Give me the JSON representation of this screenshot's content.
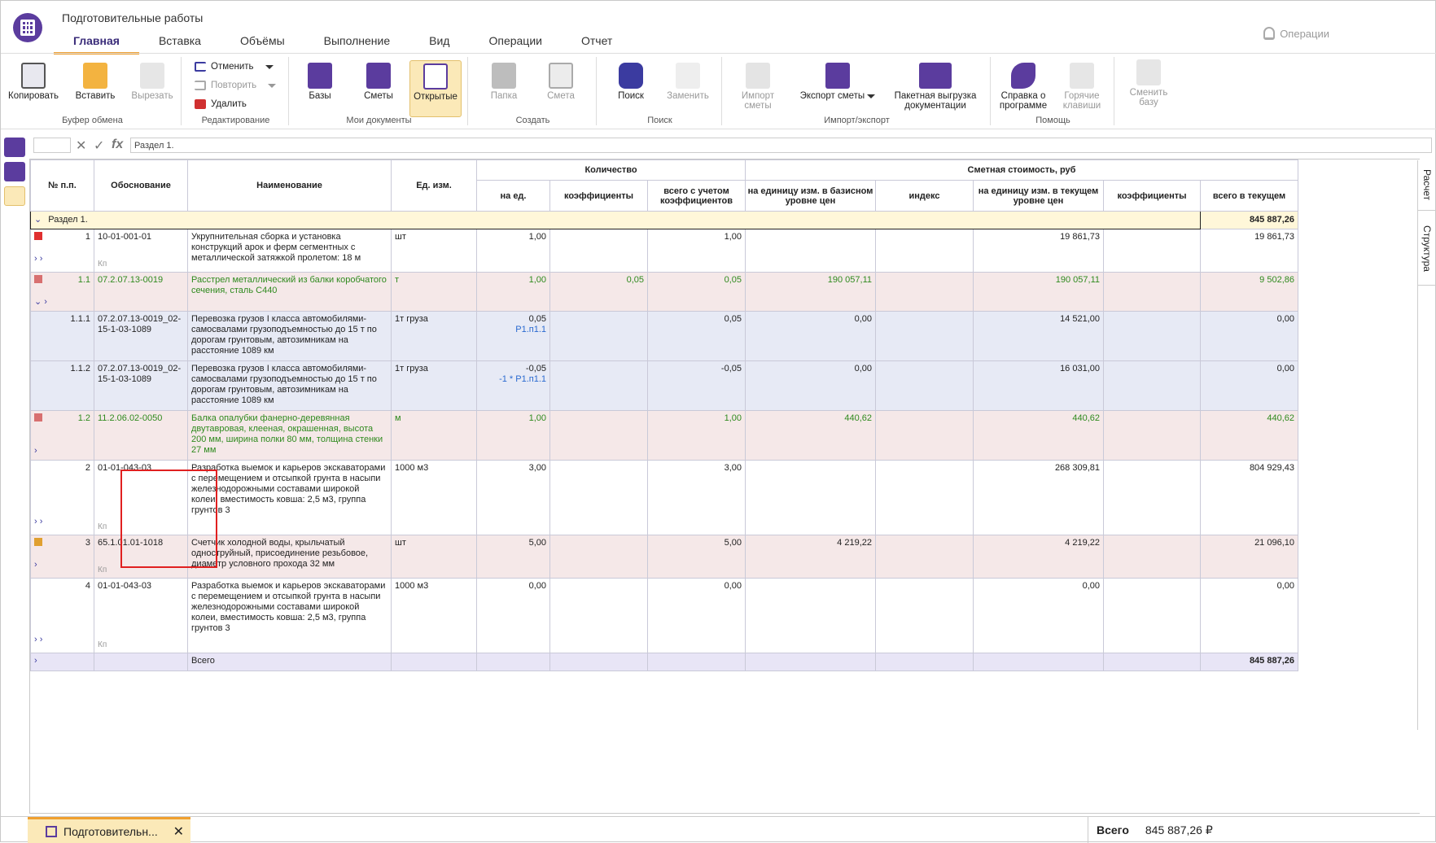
{
  "app": {
    "title": "Подготовительные работы",
    "operations": "Операции"
  },
  "tabs": [
    "Главная",
    "Вставка",
    "Объёмы",
    "Выполнение",
    "Вид",
    "Операции",
    "Отчет"
  ],
  "ribbon": {
    "clipboard": {
      "caption": "Буфер обмена",
      "copy": "Копировать",
      "paste": "Вставить",
      "cut": "Вырезать"
    },
    "editing": {
      "caption": "Редактирование",
      "undo": "Отменить",
      "redo": "Повторить",
      "delete": "Удалить"
    },
    "mydocs": {
      "caption": "Мои документы",
      "bases": "Базы",
      "estimates": "Сметы",
      "open": "Открытые"
    },
    "create": {
      "caption": "Создать",
      "folder": "Папка",
      "estimate": "Смета"
    },
    "search": {
      "caption": "Поиск",
      "find": "Поиск",
      "replace": "Заменить"
    },
    "io": {
      "caption": "Импорт/экспорт",
      "import": "Импорт сметы",
      "export": "Экспорт сметы",
      "batch": "Пакетная выгрузка документации"
    },
    "help": {
      "caption": "Помощь",
      "about": "Справка о программе",
      "hotkeys": "Горячие клавиши",
      "switch": "Сменить базу"
    }
  },
  "formula": {
    "value": "Раздел 1."
  },
  "side_tabs": [
    "Расчет",
    "Структура"
  ],
  "table": {
    "headers": {
      "num": "№ п.п.",
      "basis": "Обоснование",
      "name": "Наименование",
      "unit": "Ед. изм.",
      "qty": "Количество",
      "cost": "Сметная стоимость, руб",
      "per_unit": "на ед.",
      "coef": "коэффициенты",
      "total_coef": "всего с учетом коэффициентов",
      "base_unit": "на единицу изм. в базисном уровне цен",
      "index": "индекс",
      "cur_unit": "на единицу изм. в текущем уровне цен",
      "cost_coef": "коэффициенты",
      "total_cur": "всего в текущем"
    },
    "section": {
      "label": "Раздел 1.",
      "total": "845 887,26"
    },
    "rows": [
      {
        "num": "1",
        "basis": "10-01-001-01",
        "name": "Укрупнительная сборка и установка конструкций арок и ферм сегментных с металлической затяжкой пролетом: 18 м",
        "unit": "шт",
        "per_unit": "1,00",
        "per_unit2": "",
        "coef": "",
        "total_coef": "1,00",
        "base_unit": "",
        "index": "",
        "cur_unit": "19 861,73",
        "cost_coef": "",
        "total_cur": "19 861,73"
      },
      {
        "num": "1.1",
        "basis": "07.2.07.13-0019",
        "name": "Расстрел металлический из балки коробчатого сечения, сталь С440",
        "unit": "т",
        "per_unit": "1,00",
        "per_unit2": "",
        "coef": "0,05",
        "total_coef": "0,05",
        "base_unit": "190 057,11",
        "index": "",
        "cur_unit": "190 057,11",
        "cost_coef": "",
        "total_cur": "9 502,86"
      },
      {
        "num": "1.1.1",
        "basis": "07.2.07.13-0019_02-15-1-03-1089",
        "name": "Перевозка грузов I класса автомобилями-самосвалами грузоподъемностью до 15 т по дорогам грунтовым, автозимникам на расстояние 1089 км",
        "unit": "1т груза",
        "per_unit": "0,05",
        "per_unit2": "Р1.п1.1",
        "coef": "",
        "total_coef": "0,05",
        "base_unit": "0,00",
        "index": "",
        "cur_unit": "14 521,00",
        "cost_coef": "",
        "total_cur": "0,00"
      },
      {
        "num": "1.1.2",
        "basis": "07.2.07.13-0019_02-15-1-03-1089",
        "name": "Перевозка грузов I класса автомобилями-самосвалами грузоподъемностью до 15 т по дорогам грунтовым, автозимникам на расстояние 1089 км",
        "unit": "1т груза",
        "per_unit": "-0,05",
        "per_unit2": "-1 * Р1.п1.1",
        "coef": "",
        "total_coef": "-0,05",
        "base_unit": "0,00",
        "index": "",
        "cur_unit": "16 031,00",
        "cost_coef": "",
        "total_cur": "0,00"
      },
      {
        "num": "1.2",
        "basis": "11.2.06.02-0050",
        "name": "Балка опалубки фанерно-деревянная двутавровая, клееная, окрашенная, высота 200 мм, ширина полки 80 мм, толщина стенки 27 мм",
        "unit": "м",
        "per_unit": "1,00",
        "per_unit2": "",
        "coef": "",
        "total_coef": "1,00",
        "base_unit": "440,62",
        "index": "",
        "cur_unit": "440,62",
        "cost_coef": "",
        "total_cur": "440,62"
      },
      {
        "num": "2",
        "basis": "01-01-043-03",
        "name": "Разработка выемок и карьеров экскаваторами с перемещением и отсыпкой грунта в насыпи железнодорожными составами широкой колеи, вместимость ковша: 2,5 м3, группа грунтов 3",
        "unit": "1000 м3",
        "per_unit": "3,00",
        "per_unit2": "",
        "coef": "",
        "total_coef": "3,00",
        "base_unit": "",
        "index": "",
        "cur_unit": "268 309,81",
        "cost_coef": "",
        "total_cur": "804 929,43"
      },
      {
        "num": "3",
        "basis": "65.1.01.01-1018",
        "name": "Счетчик холодной воды, крыльчатый одноструйный, присоединение резьбовое, диаметр условного прохода 32 мм",
        "unit": "шт",
        "per_unit": "5,00",
        "per_unit2": "",
        "coef": "",
        "total_coef": "5,00",
        "base_unit": "4 219,22",
        "index": "",
        "cur_unit": "4 219,22",
        "cost_coef": "",
        "total_cur": "21 096,10"
      },
      {
        "num": "4",
        "basis": "01-01-043-03",
        "name": "Разработка выемок и карьеров экскаваторами с перемещением и отсыпкой грунта в насыпи железнодорожными составами широкой колеи, вместимость ковша: 2,5 м3, группа грунтов 3",
        "unit": "1000 м3",
        "per_unit": "0,00",
        "per_unit2": "",
        "coef": "",
        "total_coef": "0,00",
        "base_unit": "",
        "index": "",
        "cur_unit": "0,00",
        "cost_coef": "",
        "total_cur": "0,00"
      }
    ],
    "kp": "Кп",
    "footer": {
      "label": "Всего",
      "total": "845 887,26"
    }
  },
  "status": {
    "doc_tab": "Подготовительн...",
    "total_label": "Всего",
    "total_value": "845 887,26 ₽"
  },
  "colors": {
    "accent": "#f0a030",
    "brand": "#5b3c9e",
    "green_text": "#2f8a1e",
    "highlight": "#e02020"
  }
}
